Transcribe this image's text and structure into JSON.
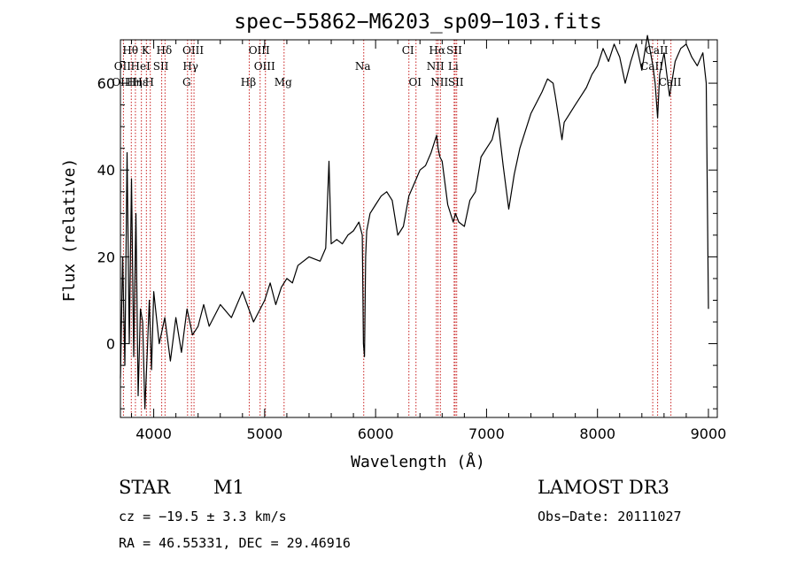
{
  "chart_data": {
    "type": "line",
    "title": "spec−55862−M6203_sp09−103.fits",
    "xlabel": "Wavelength (Å)",
    "ylabel": "Flux (relative)",
    "xlim": [
      3700,
      9080
    ],
    "ylim": [
      -17,
      70
    ],
    "xticks": [
      4000,
      5000,
      6000,
      7000,
      8000,
      9000
    ],
    "yticks": [
      0,
      20,
      40,
      60
    ],
    "series": [
      {
        "name": "flux",
        "x": [
          3700,
          3720,
          3740,
          3760,
          3780,
          3800,
          3820,
          3840,
          3860,
          3880,
          3900,
          3920,
          3940,
          3960,
          3980,
          4000,
          4050,
          4100,
          4150,
          4200,
          4250,
          4300,
          4350,
          4400,
          4450,
          4500,
          4600,
          4700,
          4800,
          4900,
          5000,
          5050,
          5100,
          5150,
          5200,
          5250,
          5300,
          5400,
          5500,
          5550,
          5580,
          5600,
          5650,
          5700,
          5750,
          5800,
          5850,
          5880,
          5890,
          5900,
          5910,
          5920,
          5950,
          6000,
          6050,
          6100,
          6150,
          6200,
          6250,
          6300,
          6350,
          6400,
          6450,
          6500,
          6550,
          6563,
          6580,
          6600,
          6650,
          6700,
          6720,
          6750,
          6800,
          6850,
          6900,
          6950,
          7000,
          7050,
          7100,
          7150,
          7200,
          7250,
          7300,
          7400,
          7500,
          7550,
          7600,
          7620,
          7650,
          7680,
          7700,
          7750,
          7800,
          7850,
          7900,
          7950,
          8000,
          8050,
          8100,
          8150,
          8200,
          8250,
          8300,
          8350,
          8400,
          8450,
          8500,
          8520,
          8542,
          8560,
          8600,
          8650,
          8700,
          8750,
          8800,
          8850,
          8900,
          8950,
          8980,
          9000
        ],
        "y": [
          -8,
          20,
          -5,
          44,
          0,
          38,
          -3,
          30,
          -12,
          8,
          5,
          -15,
          -3,
          10,
          -6,
          12,
          0,
          6,
          -4,
          6,
          -2,
          8,
          2,
          4,
          9,
          4,
          9,
          6,
          12,
          5,
          10,
          14,
          9,
          13,
          15,
          14,
          18,
          20,
          19,
          22,
          42,
          23,
          24,
          23,
          25,
          26,
          28,
          25,
          0,
          -3,
          20,
          26,
          30,
          32,
          34,
          35,
          33,
          25,
          27,
          34,
          37,
          40,
          41,
          44,
          48,
          45,
          43,
          42,
          32,
          28,
          30,
          28,
          27,
          33,
          35,
          43,
          45,
          47,
          52,
          41,
          31,
          39,
          45,
          53,
          58,
          61,
          60,
          57,
          52,
          47,
          51,
          53,
          55,
          57,
          59,
          62,
          64,
          68,
          65,
          69,
          66,
          60,
          65,
          69,
          63,
          71,
          64,
          60,
          52,
          62,
          67,
          57,
          65,
          68,
          69,
          66,
          64,
          67,
          60,
          8
        ]
      }
    ],
    "line_labels": [
      {
        "text": "Hθ",
        "wavelength": 3798
      },
      {
        "text": "K",
        "wavelength": 3934
      },
      {
        "text": "Hδ",
        "wavelength": 4102
      },
      {
        "text": "OIII",
        "wavelength": 4363
      },
      {
        "text": "OIII",
        "wavelength": 4959
      },
      {
        "text": "CI",
        "wavelength": 6300
      },
      {
        "text": "Hα",
        "wavelength": 6563
      },
      {
        "text": "SII",
        "wavelength": 6717
      },
      {
        "text": "CaII",
        "wavelength": 8542
      },
      {
        "text": "OII",
        "wavelength": 3727
      },
      {
        "text": "HeI",
        "wavelength": 3889
      },
      {
        "text": "SII",
        "wavelength": 4072
      },
      {
        "text": "Hγ",
        "wavelength": 4340
      },
      {
        "text": "OIII",
        "wavelength": 5007
      },
      {
        "text": "Na",
        "wavelength": 5893
      },
      {
        "text": "NII",
        "wavelength": 6548
      },
      {
        "text": "Li",
        "wavelength": 6708
      },
      {
        "text": "CaII",
        "wavelength": 8498
      },
      {
        "text": "OIII",
        "wavelength": 3727
      },
      {
        "text": "Hε",
        "wavelength": 3889
      },
      {
        "text": "Hη",
        "wavelength": 3835
      },
      {
        "text": "H",
        "wavelength": 3969
      },
      {
        "text": "G",
        "wavelength": 4305
      },
      {
        "text": "Hβ",
        "wavelength": 4861
      },
      {
        "text": "Mg",
        "wavelength": 5175
      },
      {
        "text": "OI",
        "wavelength": 6364
      },
      {
        "text": "NII",
        "wavelength": 6584
      },
      {
        "text": "SII",
        "wavelength": 6731
      },
      {
        "text": "CaII",
        "wavelength": 8662
      }
    ],
    "vlines": [
      3727,
      3798,
      3835,
      3889,
      3934,
      3969,
      4072,
      4102,
      4305,
      4340,
      4363,
      4861,
      4959,
      5007,
      5175,
      5893,
      6300,
      6364,
      6548,
      6563,
      6584,
      6708,
      6717,
      6731,
      8498,
      8542,
      8662
    ]
  },
  "footer": {
    "object_class": "STAR",
    "subclass": "M1",
    "survey": "LAMOST DR3",
    "redshift": "cz = −19.5 ± 3.3 km/s",
    "obs_date": "Obs−Date: 20111027",
    "coords": "RA =  46.55331, DEC =  29.46916"
  },
  "colors": {
    "spectrum": "#000000",
    "line_marker": "#c81e1e",
    "axes": "#000000"
  }
}
